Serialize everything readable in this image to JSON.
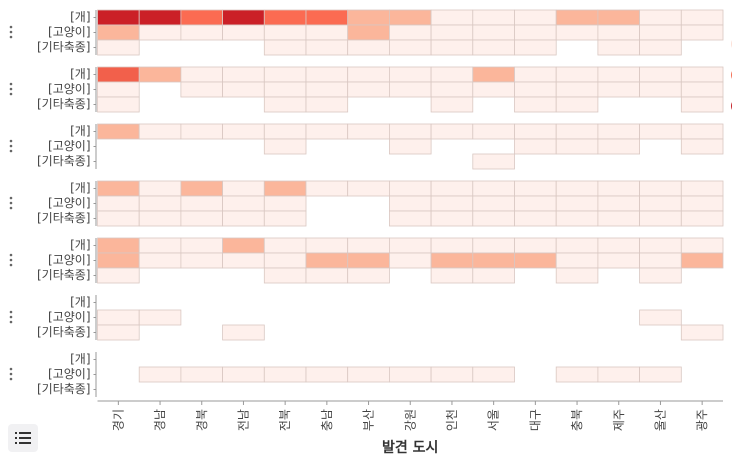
{
  "chart_data": {
    "type": "heatmap",
    "xlabel": "발견 도시",
    "categories": [
      "경기",
      "경남",
      "경북",
      "전남",
      "전북",
      "충남",
      "부산",
      "강원",
      "인천",
      "서울",
      "대구",
      "충북",
      "제주",
      "울산",
      "광주"
    ],
    "row_labels": [
      "[개]",
      "[고양이]",
      "[기타축종]"
    ],
    "panels": [
      {
        "rows": [
          [
            5,
            5,
            3,
            5,
            3,
            3,
            2,
            2,
            1,
            1,
            1,
            2,
            2,
            1,
            1
          ],
          [
            2,
            1,
            1,
            1,
            1,
            1,
            2,
            1,
            1,
            1,
            1,
            1,
            1,
            1,
            1
          ],
          [
            1,
            0,
            0,
            0,
            1,
            1,
            1,
            1,
            1,
            1,
            1,
            0,
            1,
            1,
            0
          ]
        ]
      },
      {
        "rows": [
          [
            4,
            2,
            1,
            1,
            1,
            1,
            1,
            1,
            1,
            2,
            1,
            1,
            1,
            1,
            1
          ],
          [
            1,
            0,
            1,
            1,
            1,
            1,
            1,
            1,
            1,
            1,
            1,
            1,
            1,
            1,
            1
          ],
          [
            1,
            0,
            0,
            0,
            1,
            1,
            0,
            0,
            1,
            0,
            1,
            1,
            0,
            0,
            1
          ]
        ]
      },
      {
        "rows": [
          [
            2,
            1,
            1,
            1,
            1,
            1,
            1,
            1,
            1,
            1,
            1,
            1,
            1,
            1,
            1
          ],
          [
            0,
            0,
            0,
            0,
            1,
            0,
            0,
            1,
            0,
            0,
            1,
            1,
            1,
            0,
            1
          ],
          [
            0,
            0,
            0,
            0,
            0,
            0,
            0,
            0,
            0,
            1,
            0,
            0,
            0,
            0,
            0
          ]
        ]
      },
      {
        "rows": [
          [
            2,
            1,
            2,
            1,
            2,
            1,
            1,
            1,
            1,
            1,
            1,
            1,
            1,
            1,
            1
          ],
          [
            1,
            1,
            1,
            1,
            1,
            0,
            0,
            1,
            1,
            1,
            1,
            1,
            1,
            1,
            1
          ],
          [
            1,
            1,
            1,
            1,
            1,
            0,
            0,
            1,
            1,
            1,
            1,
            1,
            1,
            1,
            1
          ]
        ]
      },
      {
        "rows": [
          [
            2,
            1,
            1,
            2,
            1,
            1,
            1,
            1,
            1,
            1,
            1,
            1,
            1,
            1,
            1
          ],
          [
            2,
            1,
            1,
            1,
            1,
            2,
            2,
            1,
            2,
            2,
            2,
            1,
            1,
            1,
            2
          ],
          [
            1,
            0,
            0,
            0,
            1,
            1,
            1,
            0,
            1,
            1,
            0,
            1,
            0,
            1,
            0
          ]
        ]
      },
      {
        "rows": [
          [
            0,
            0,
            0,
            0,
            0,
            0,
            0,
            0,
            0,
            0,
            0,
            0,
            0,
            0,
            0
          ],
          [
            1,
            1,
            0,
            0,
            0,
            0,
            0,
            0,
            0,
            0,
            0,
            0,
            0,
            1,
            0
          ],
          [
            1,
            0,
            0,
            1,
            0,
            0,
            0,
            0,
            0,
            0,
            0,
            0,
            0,
            0,
            1
          ]
        ]
      },
      {
        "rows": [
          [
            0,
            0,
            0,
            0,
            0,
            0,
            0,
            0,
            0,
            0,
            0,
            0,
            0,
            0,
            0
          ],
          [
            0,
            1,
            1,
            1,
            1,
            1,
            1,
            1,
            1,
            1,
            0,
            1,
            1,
            1,
            0
          ],
          [
            0,
            0,
            0,
            0,
            0,
            0,
            0,
            0,
            0,
            0,
            0,
            0,
            0,
            0,
            0
          ]
        ]
      }
    ],
    "colors": {
      "0": "#ffffff",
      "1": "#fef0ec",
      "2": "#fbb69b",
      "3": "#fb6b52",
      "4": "#f2604b",
      "5": "#cb2027"
    },
    "grid_color": "#d9c7c2"
  }
}
